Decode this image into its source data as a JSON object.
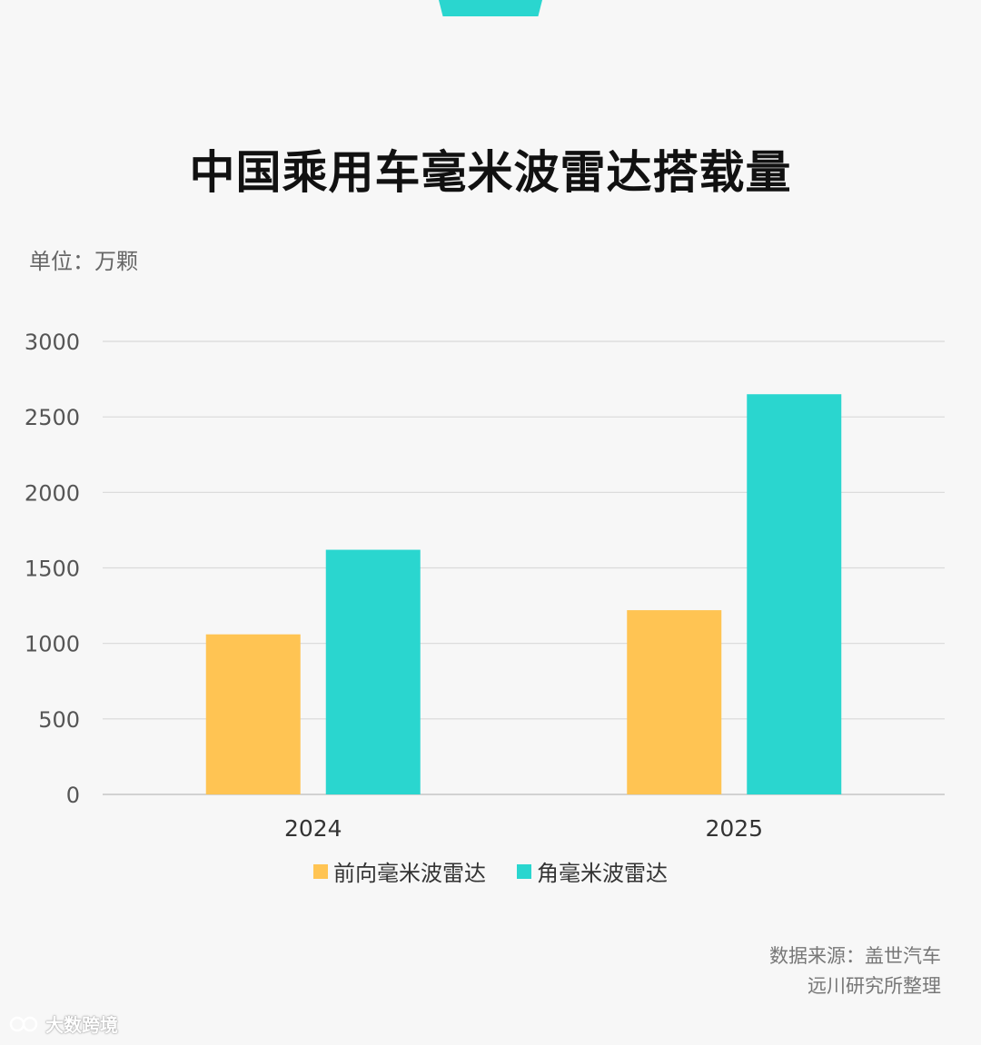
{
  "page": {
    "title": "中国乘用车毫米波雷达搭载量",
    "unit_label": "单位：万颗",
    "source_line1": "数据来源：盖世汽车",
    "source_line2": "远川研究所整理",
    "watermark": "大数跨境"
  },
  "colors": {
    "accent": "#2ad6cf",
    "front_radar": "#ffc453",
    "corner_radar": "#2ad6cf",
    "grid": "#d9d9d9",
    "tick_text": "#555555"
  },
  "chart_data": {
    "type": "bar",
    "categories": [
      "2024",
      "2025"
    ],
    "series": [
      {
        "name": "前向毫米波雷达",
        "values": [
          1060,
          1220
        ]
      },
      {
        "name": "角毫米波雷达",
        "values": [
          1620,
          2650
        ]
      }
    ],
    "yticks": [
      0,
      500,
      1000,
      1500,
      2000,
      2500,
      3000
    ],
    "ylim": [
      0,
      3000
    ],
    "grid": true,
    "legend_position": "bottom"
  }
}
